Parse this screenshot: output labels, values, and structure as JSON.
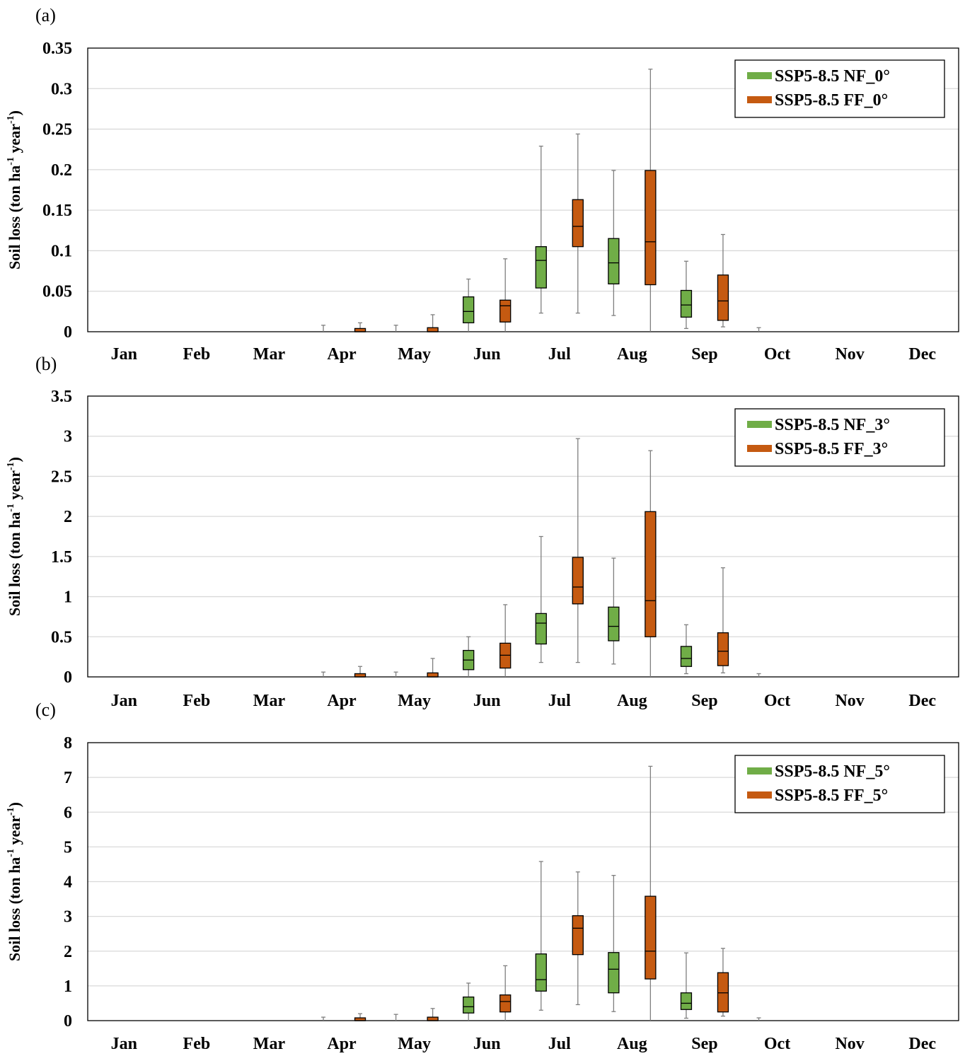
{
  "chart_data": [
    {
      "type": "box",
      "panel_label": "(a)",
      "ylabel": "Soil loss (ton ha-1 year-1)",
      "ylabel_parts": {
        "base": "Soil loss (ton ha",
        "sup1": "-1",
        "mid": " year",
        "sup2": "-1",
        "end": ")"
      },
      "ylim": [
        0,
        0.35
      ],
      "yticks": [
        0,
        0.05,
        0.1,
        0.15,
        0.2,
        0.25,
        0.3,
        0.35
      ],
      "ytick_labels": [
        "0",
        "0.05",
        "0.1",
        "0.15",
        "0.2",
        "0.25",
        "0.3",
        "0.35"
      ],
      "categories": [
        "Jan",
        "Feb",
        "Mar",
        "Apr",
        "May",
        "Jun",
        "Jul",
        "Aug",
        "Sep",
        "Oct",
        "Nov",
        "Dec"
      ],
      "grid": true,
      "legend_position": "top-right",
      "series": [
        {
          "name": "SSP5-8.5 NF_0°",
          "color": "#70ad47",
          "boxes": [
            null,
            null,
            null,
            {
              "min": 0,
              "q1": 0,
              "median": 0,
              "q3": 0,
              "max": 0.008
            },
            {
              "min": 0,
              "q1": 0,
              "median": 0,
              "q3": 0,
              "max": 0.008
            },
            {
              "min": 0,
              "q1": 0.011,
              "median": 0.025,
              "q3": 0.043,
              "max": 0.065
            },
            {
              "min": 0.023,
              "q1": 0.054,
              "median": 0.088,
              "q3": 0.105,
              "max": 0.229
            },
            {
              "min": 0.02,
              "q1": 0.059,
              "median": 0.085,
              "q3": 0.115,
              "max": 0.199
            },
            {
              "min": 0.004,
              "q1": 0.018,
              "median": 0.033,
              "q3": 0.051,
              "max": 0.087
            },
            {
              "min": 0,
              "q1": 0,
              "median": 0,
              "q3": 0,
              "max": 0.005
            },
            null,
            null
          ]
        },
        {
          "name": "SSP5-8.5 FF_0°",
          "color": "#c55a11",
          "boxes": [
            null,
            null,
            null,
            {
              "min": 0,
              "q1": 0,
              "median": 0,
              "q3": 0.004,
              "max": 0.011
            },
            {
              "min": 0,
              "q1": 0,
              "median": 0,
              "q3": 0.005,
              "max": 0.021
            },
            {
              "min": 0,
              "q1": 0.012,
              "median": 0.032,
              "q3": 0.039,
              "max": 0.09
            },
            {
              "min": 0.023,
              "q1": 0.105,
              "median": 0.13,
              "q3": 0.163,
              "max": 0.244
            },
            {
              "min": 0,
              "q1": 0.058,
              "median": 0.111,
              "q3": 0.199,
              "max": 0.324
            },
            {
              "min": 0.006,
              "q1": 0.014,
              "median": 0.038,
              "q3": 0.07,
              "max": 0.12
            },
            null,
            null,
            null
          ]
        }
      ]
    },
    {
      "type": "box",
      "panel_label": "(b)",
      "ylabel": "Soil loss (ton ha-1 year-1)",
      "ylabel_parts": {
        "base": "Soil loss (ton ha",
        "sup1": "-1",
        "mid": " year",
        "sup2": "-1",
        "end": ")"
      },
      "ylim": [
        0,
        3.5
      ],
      "yticks": [
        0,
        0.5,
        1,
        1.5,
        2,
        2.5,
        3,
        3.5
      ],
      "ytick_labels": [
        "0",
        "0.5",
        "1",
        "1.5",
        "2",
        "2.5",
        "3",
        "3.5"
      ],
      "categories": [
        "Jan",
        "Feb",
        "Mar",
        "Apr",
        "May",
        "Jun",
        "Jul",
        "Aug",
        "Sep",
        "Oct",
        "Nov",
        "Dec"
      ],
      "grid": true,
      "legend_position": "top-right",
      "series": [
        {
          "name": "SSP5-8.5 NF_3°",
          "color": "#70ad47",
          "boxes": [
            null,
            null,
            null,
            {
              "min": 0,
              "q1": 0,
              "median": 0,
              "q3": 0,
              "max": 0.06
            },
            {
              "min": 0,
              "q1": 0,
              "median": 0,
              "q3": 0,
              "max": 0.06
            },
            {
              "min": 0,
              "q1": 0.09,
              "median": 0.21,
              "q3": 0.33,
              "max": 0.5
            },
            {
              "min": 0.18,
              "q1": 0.41,
              "median": 0.67,
              "q3": 0.79,
              "max": 1.75
            },
            {
              "min": 0.16,
              "q1": 0.45,
              "median": 0.63,
              "q3": 0.87,
              "max": 1.48
            },
            {
              "min": 0.04,
              "q1": 0.13,
              "median": 0.23,
              "q3": 0.38,
              "max": 0.65
            },
            {
              "min": 0,
              "q1": 0,
              "median": 0,
              "q3": 0,
              "max": 0.04
            },
            null,
            null
          ]
        },
        {
          "name": "SSP5-8.5 FF_3°",
          "color": "#c55a11",
          "boxes": [
            null,
            null,
            null,
            {
              "min": 0,
              "q1": 0,
              "median": 0,
              "q3": 0.04,
              "max": 0.13
            },
            {
              "min": 0,
              "q1": 0,
              "median": 0,
              "q3": 0.05,
              "max": 0.23
            },
            {
              "min": 0,
              "q1": 0.11,
              "median": 0.27,
              "q3": 0.42,
              "max": 0.9
            },
            {
              "min": 0.18,
              "q1": 0.91,
              "median": 1.12,
              "q3": 1.49,
              "max": 2.97
            },
            {
              "min": 0,
              "q1": 0.5,
              "median": 0.95,
              "q3": 2.06,
              "max": 2.82
            },
            {
              "min": 0.05,
              "q1": 0.14,
              "median": 0.32,
              "q3": 0.55,
              "max": 1.36
            },
            null,
            null,
            null
          ]
        }
      ]
    },
    {
      "type": "box",
      "panel_label": "(c)",
      "ylabel": "Soil loss (ton ha-1 year-1)",
      "ylabel_parts": {
        "base": "Soil loss (ton ha",
        "sup1": "-1",
        "mid": " year",
        "sup2": "-1",
        "end": ")"
      },
      "ylim": [
        0,
        8
      ],
      "yticks": [
        0,
        1,
        2,
        3,
        4,
        5,
        6,
        7,
        8
      ],
      "ytick_labels": [
        "0",
        "1",
        "2",
        "3",
        "4",
        "5",
        "6",
        "7",
        "8"
      ],
      "categories": [
        "Jan",
        "Feb",
        "Mar",
        "Apr",
        "May",
        "Jun",
        "Jul",
        "Aug",
        "Sep",
        "Oct",
        "Nov",
        "Dec"
      ],
      "grid": true,
      "legend_position": "top-right",
      "series": [
        {
          "name": "SSP5-8.5 NF_5°",
          "color": "#70ad47",
          "boxes": [
            null,
            null,
            null,
            {
              "min": 0,
              "q1": 0,
              "median": 0,
              "q3": 0,
              "max": 0.1
            },
            {
              "min": 0,
              "q1": 0,
              "median": 0,
              "q3": 0,
              "max": 0.18
            },
            {
              "min": 0,
              "q1": 0.22,
              "median": 0.4,
              "q3": 0.68,
              "max": 1.08
            },
            {
              "min": 0.3,
              "q1": 0.85,
              "median": 1.18,
              "q3": 1.92,
              "max": 4.58
            },
            {
              "min": 0.26,
              "q1": 0.8,
              "median": 1.48,
              "q3": 1.96,
              "max": 4.18
            },
            {
              "min": 0.07,
              "q1": 0.32,
              "median": 0.5,
              "q3": 0.8,
              "max": 1.95
            },
            {
              "min": 0,
              "q1": 0,
              "median": 0,
              "q3": 0,
              "max": 0.08
            },
            null,
            null
          ]
        },
        {
          "name": "SSP5-8.5 FF_5°",
          "color": "#c55a11",
          "boxes": [
            null,
            null,
            null,
            {
              "min": 0,
              "q1": 0,
              "median": 0,
              "q3": 0.08,
              "max": 0.2
            },
            {
              "min": 0,
              "q1": 0,
              "median": 0,
              "q3": 0.1,
              "max": 0.35
            },
            {
              "min": 0,
              "q1": 0.25,
              "median": 0.55,
              "q3": 0.74,
              "max": 1.58
            },
            {
              "min": 0.46,
              "q1": 1.9,
              "median": 2.66,
              "q3": 3.02,
              "max": 4.28
            },
            {
              "min": 0,
              "q1": 1.2,
              "median": 2.0,
              "q3": 3.58,
              "max": 7.32
            },
            {
              "min": 0.13,
              "q1": 0.25,
              "median": 0.8,
              "q3": 1.38,
              "max": 2.08
            },
            null,
            null,
            null
          ]
        }
      ]
    }
  ]
}
